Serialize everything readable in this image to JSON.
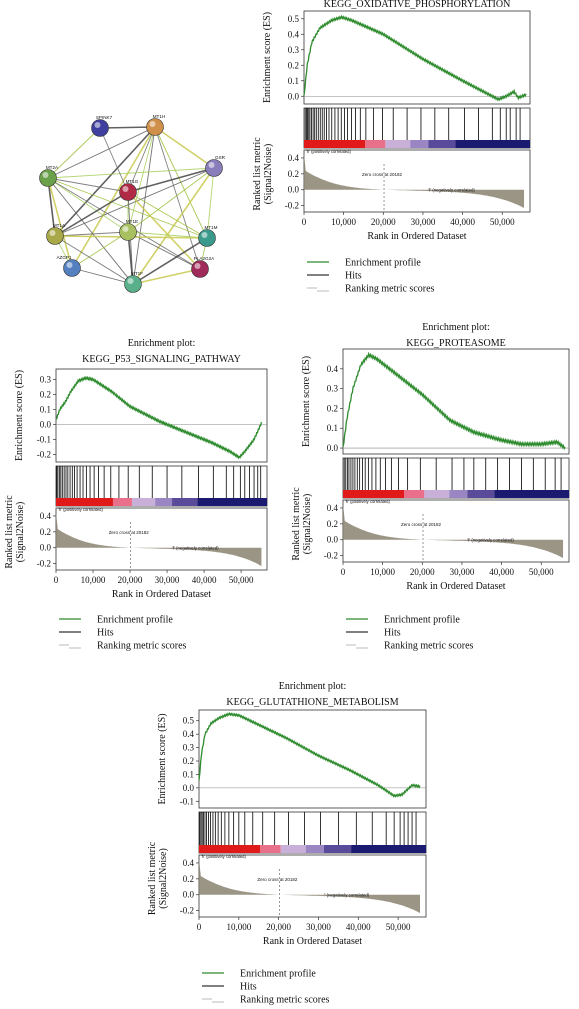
{
  "network": {
    "nodes": [
      {
        "id": "SPINK7",
        "color": "#3f3fa0"
      },
      {
        "id": "MT1H",
        "color": "#d0904a"
      },
      {
        "id": "GSR",
        "color": "#8a7dbb"
      },
      {
        "id": "MT2A",
        "color": "#6aa04a"
      },
      {
        "id": "MT1G",
        "color": "#b02a45"
      },
      {
        "id": "MT1E",
        "color": "#a8c060"
      },
      {
        "id": "MT1A",
        "color": "#a8a848"
      },
      {
        "id": "MT1M",
        "color": "#3a9a8c"
      },
      {
        "id": "AZGP1",
        "color": "#5580c0"
      },
      {
        "id": "MT1F",
        "color": "#5ab08a"
      },
      {
        "id": "PLA2G2A",
        "color": "#a02a5a"
      }
    ]
  },
  "legend": {
    "enrichment_profile": "Enrichment profile",
    "hits": "Hits",
    "ranking_metric": "Ranking metric scores",
    "enrichment_color": "#2e8b2e",
    "hits_color": "#000000",
    "ranking_color": "#8a8270"
  },
  "chart_data": [
    {
      "type": "line",
      "title": "KEGG_OXIDATIVE_PHOSPHORYLATION",
      "subtitle": "",
      "es_ylabel": "Enrichment score (ES)",
      "metric_ylabel": "Ranked list metric (Signal2Noise)",
      "xlabel": "Rank in Ordered Dataset",
      "x_ticks": [
        "0",
        "10,000",
        "20,000",
        "30,000",
        "40,000",
        "50,000"
      ],
      "xlim": [
        0,
        57000
      ],
      "es_ylim": [
        -0.05,
        0.55
      ],
      "es_ticks": [
        "0.5",
        "0.4",
        "0.3",
        "0.2",
        "0.1",
        "0.0"
      ],
      "metric_ylim": [
        -0.28,
        0.5
      ],
      "metric_ticks": [
        "0.4",
        "0.2",
        "0.0",
        "-0.2"
      ],
      "positive_label": "'h' (positively correlated)",
      "negative_label": "'f' (negatively correlated)",
      "zero_cross_label": "Zero cross at 20182",
      "zero_cross": 20182,
      "es_curve": [
        [
          0,
          0.0
        ],
        [
          800,
          0.2
        ],
        [
          2000,
          0.35
        ],
        [
          4000,
          0.44
        ],
        [
          7000,
          0.49
        ],
        [
          9500,
          0.51
        ],
        [
          12000,
          0.49
        ],
        [
          20000,
          0.4
        ],
        [
          30000,
          0.24
        ],
        [
          40000,
          0.1
        ],
        [
          46000,
          0.02
        ],
        [
          49000,
          -0.02
        ],
        [
          51000,
          0.0
        ],
        [
          53000,
          0.03
        ],
        [
          54000,
          -0.01
        ],
        [
          56000,
          0.01
        ]
      ],
      "hits": [
        300,
        600,
        900,
        1200,
        1500,
        1900,
        2300,
        2700,
        3100,
        3600,
        4100,
        4600,
        5100,
        5700,
        6300,
        7000,
        7800,
        8600,
        9400,
        10200,
        11000,
        12000,
        13000,
        14200,
        15600,
        17500,
        19800,
        22500,
        26000,
        29500,
        33000,
        36500,
        40500,
        44000,
        47500,
        49500,
        51000,
        52000,
        53500,
        54500
      ]
    },
    {
      "type": "line",
      "title": "Enrichment plot:",
      "subtitle": "KEGG_P53_SIGNALING_PATHWAY",
      "es_ylabel": "Enrichment score (ES)",
      "metric_ylabel": "Ranked list metric (Signal2Noise)",
      "xlabel": "Rank in Ordered Dataset",
      "x_ticks": [
        "0",
        "10,000",
        "20,000",
        "30,000",
        "40,000",
        "50,000"
      ],
      "xlim": [
        0,
        57000
      ],
      "es_ylim": [
        -0.25,
        0.37
      ],
      "es_ticks": [
        "0.3",
        "0.2",
        "0.1",
        "0.0",
        "-0.1",
        "-0.2"
      ],
      "metric_ylim": [
        -0.28,
        0.5
      ],
      "metric_ticks": [
        "0.4",
        "0.2",
        "0.0",
        "-0.2"
      ],
      "positive_label": "'h' (positively correlated)",
      "negative_label": "'f' (negatively correlated)",
      "zero_cross_label": "Zero cross at 20182",
      "zero_cross": 20182,
      "es_curve": [
        [
          0,
          0.03
        ],
        [
          1000,
          0.1
        ],
        [
          2500,
          0.15
        ],
        [
          4000,
          0.22
        ],
        [
          6000,
          0.29
        ],
        [
          8000,
          0.31
        ],
        [
          10000,
          0.3
        ],
        [
          15000,
          0.22
        ],
        [
          20000,
          0.12
        ],
        [
          28000,
          0.02
        ],
        [
          35000,
          -0.05
        ],
        [
          42000,
          -0.12
        ],
        [
          47000,
          -0.18
        ],
        [
          49500,
          -0.22
        ],
        [
          51000,
          -0.18
        ],
        [
          53500,
          -0.1
        ],
        [
          55500,
          0.01
        ]
      ],
      "hits": [
        200,
        500,
        900,
        1300,
        1700,
        2200,
        2700,
        3200,
        3800,
        4400,
        5000,
        5700,
        6500,
        7300,
        8200,
        9200,
        10300,
        11500,
        13000,
        14800,
        17000,
        19500,
        22500,
        26000,
        30000,
        34000,
        38500,
        42500,
        46000,
        48000,
        49800,
        51000,
        52300,
        53500,
        54500,
        55300
      ]
    },
    {
      "type": "line",
      "title": "Enrichment plot:",
      "subtitle": "KEGG_PROTEASOME",
      "es_ylabel": "Enrichment score (ES)",
      "metric_ylabel": "Ranked list metric (Signal2Noise)",
      "xlabel": "Rank in Ordered Dataset",
      "x_ticks": [
        "0",
        "10,000",
        "20,000",
        "30,000",
        "40,000",
        "50,000"
      ],
      "xlim": [
        0,
        57000
      ],
      "es_ylim": [
        -0.03,
        0.5
      ],
      "es_ticks": [
        "0.4",
        "0.3",
        "0.2",
        "0.1",
        "0.0"
      ],
      "metric_ylim": [
        -0.28,
        0.5
      ],
      "metric_ticks": [
        "0.4",
        "0.2",
        "0.0",
        "-0.2"
      ],
      "positive_label": "'h' (positively correlated)",
      "negative_label": "'f' (negatively correlated)",
      "zero_cross_label": "Zero cross at 20182",
      "zero_cross": 20182,
      "es_curve": [
        [
          0,
          0.0
        ],
        [
          1000,
          0.15
        ],
        [
          2500,
          0.3
        ],
        [
          4500,
          0.42
        ],
        [
          6500,
          0.47
        ],
        [
          8500,
          0.45
        ],
        [
          13000,
          0.38
        ],
        [
          20000,
          0.27
        ],
        [
          27000,
          0.14
        ],
        [
          33000,
          0.08
        ],
        [
          40000,
          0.04
        ],
        [
          45000,
          0.02
        ],
        [
          50000,
          0.02
        ],
        [
          54000,
          0.03
        ],
        [
          56000,
          0.0
        ]
      ],
      "hits": [
        300,
        700,
        1100,
        1500,
        2000,
        2500,
        3000,
        3600,
        4200,
        4900,
        5600,
        6400,
        7300,
        8300,
        9400,
        10700,
        12200,
        14000,
        16300,
        19500,
        23500,
        27500,
        30500,
        33000,
        36000,
        39000,
        42000,
        45000,
        48000,
        51000,
        53500,
        55000
      ]
    },
    {
      "type": "line",
      "title": "Enrichment plot:",
      "subtitle": "KEGG_GLUTATHIONE_METABOLISM",
      "es_ylabel": "Enrichment score (ES)",
      "metric_ylabel": "Ranked list metric (Signal2Noise)",
      "xlabel": "Rank in Ordered Dataset",
      "x_ticks": [
        "0",
        "10,000",
        "20,000",
        "30,000",
        "40,000",
        "50,000"
      ],
      "xlim": [
        0,
        57000
      ],
      "es_ylim": [
        -0.15,
        0.58
      ],
      "es_ticks": [
        "0.5",
        "0.4",
        "0.3",
        "0.2",
        "0.1",
        "0.0",
        "-0.1"
      ],
      "metric_ylim": [
        -0.28,
        0.5
      ],
      "metric_ticks": [
        "0.4",
        "0.2",
        "0.0",
        "-0.2"
      ],
      "positive_label": "'h' (positively correlated)",
      "negative_label": "'' (negatively correlated)",
      "zero_cross_label": "Zero cross at 20182",
      "zero_cross": 20182,
      "es_curve": [
        [
          0,
          0.05
        ],
        [
          600,
          0.25
        ],
        [
          1500,
          0.4
        ],
        [
          3000,
          0.48
        ],
        [
          5000,
          0.52
        ],
        [
          7500,
          0.55
        ],
        [
          10000,
          0.54
        ],
        [
          15000,
          0.47
        ],
        [
          22000,
          0.37
        ],
        [
          30000,
          0.24
        ],
        [
          38000,
          0.13
        ],
        [
          45000,
          0.02
        ],
        [
          49000,
          -0.06
        ],
        [
          51000,
          -0.05
        ],
        [
          53500,
          0.02
        ],
        [
          55500,
          0.01
        ]
      ],
      "hits": [
        200,
        500,
        800,
        1100,
        1500,
        1900,
        2400,
        2900,
        3500,
        4100,
        4800,
        5600,
        6500,
        7500,
        8700,
        10000,
        11500,
        13500,
        16000,
        19000,
        22500,
        26500,
        30500,
        35000,
        39500,
        43500,
        47000,
        49000,
        50500,
        51500,
        52500,
        53500,
        54500
      ]
    }
  ]
}
